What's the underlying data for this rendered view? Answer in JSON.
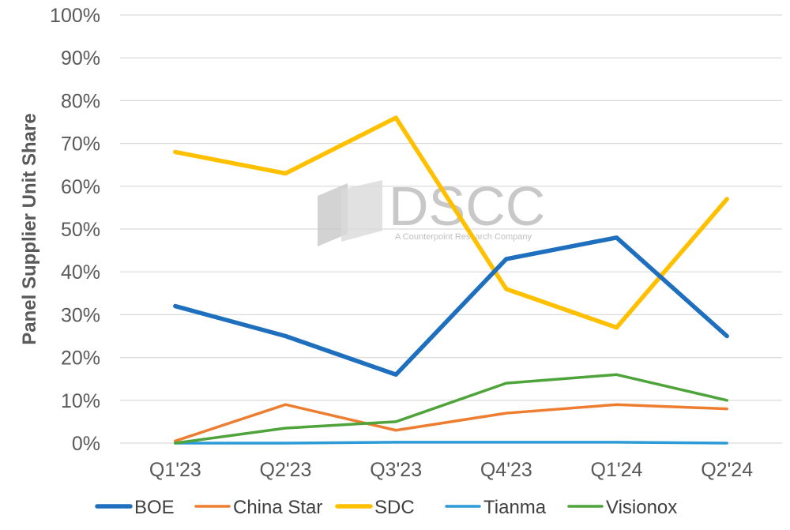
{
  "chart_data": {
    "type": "line",
    "ylabel": "Panel Supplier Unit Share",
    "xlabel": "",
    "categories": [
      "Q1'23",
      "Q2'23",
      "Q3'23",
      "Q4'23",
      "Q1'24",
      "Q2'24"
    ],
    "ylim": [
      0,
      100
    ],
    "yticks": [
      "0%",
      "10%",
      "20%",
      "30%",
      "40%",
      "50%",
      "60%",
      "70%",
      "80%",
      "90%",
      "100%"
    ],
    "grid": true,
    "legend_position": "bottom",
    "series": [
      {
        "name": "BOE",
        "color": "#1f6fbf",
        "values": [
          32,
          25,
          16,
          43,
          48,
          25
        ]
      },
      {
        "name": "China Star",
        "color": "#ed7d31",
        "values": [
          0.5,
          9,
          3,
          7,
          9,
          8
        ]
      },
      {
        "name": "SDC",
        "color": "#ffc000",
        "values": [
          68,
          63,
          76,
          36,
          27,
          57
        ]
      },
      {
        "name": "Tianma",
        "color": "#2e9bd6",
        "values": [
          0,
          0,
          0.2,
          0.2,
          0.2,
          0
        ]
      },
      {
        "name": "Visionox",
        "color": "#4ea33a",
        "values": [
          0,
          3.5,
          5,
          14,
          16,
          10
        ]
      }
    ]
  },
  "watermark": {
    "brand": "DSCC",
    "tagline": "A Counterpoint Research Company"
  }
}
